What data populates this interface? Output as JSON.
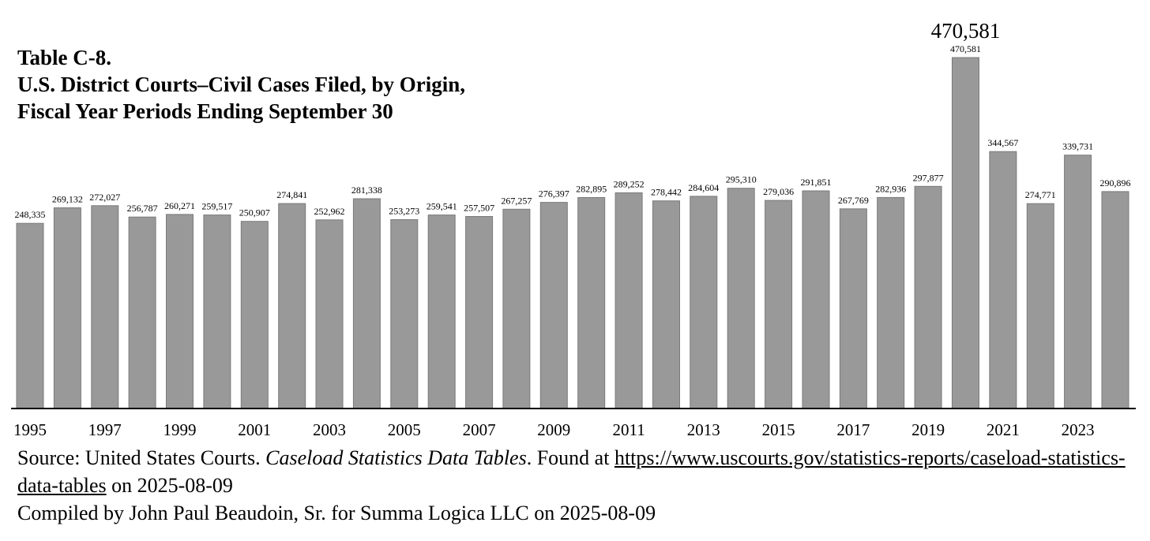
{
  "title_lines": [
    "Table C-8.",
    "U.S. District Courts–Civil Cases Filed, by Origin,",
    "Fiscal Year Periods Ending September 30"
  ],
  "chart_data": {
    "type": "bar",
    "title": "Table C-8. U.S. District Courts–Civil Cases Filed, by Origin, Fiscal Year Periods Ending September 30",
    "categories": [
      "1995",
      "1996",
      "1997",
      "1998",
      "1999",
      "2000",
      "2001",
      "2002",
      "2003",
      "2004",
      "2005",
      "2006",
      "2007",
      "2008",
      "2009",
      "2010",
      "2011",
      "2012",
      "2013",
      "2014",
      "2015",
      "2016",
      "2017",
      "2018",
      "2019",
      "2020",
      "2021",
      "2022",
      "2023",
      "2024"
    ],
    "values": [
      248335,
      269132,
      272027,
      256787,
      260271,
      259517,
      250907,
      274841,
      252962,
      281338,
      253273,
      259541,
      257507,
      267257,
      276397,
      282895,
      289252,
      278442,
      284604,
      295310,
      279036,
      291851,
      267769,
      282936,
      297877,
      470581,
      344567,
      274771,
      339731,
      290896
    ],
    "value_labels": [
      "248,335",
      "269,132",
      "272,027",
      "256,787",
      "260,271",
      "259,517",
      "250,907",
      "274,841",
      "252,962",
      "281,338",
      "253,273",
      "259,541",
      "257,507",
      "267,257",
      "276,397",
      "282,895",
      "289,252",
      "278,442",
      "284,604",
      "295,310",
      "279,036",
      "291,851",
      "267,769",
      "282,936",
      "297,877",
      "470,581",
      "344,567",
      "274,771",
      "339,731",
      "290,896"
    ],
    "x_tick_labels": [
      "1995",
      "1997",
      "1999",
      "2001",
      "2003",
      "2005",
      "2007",
      "2009",
      "2011",
      "2013",
      "2015",
      "2017",
      "2019",
      "2021",
      "2023"
    ],
    "ylim": [
      0,
      470581
    ],
    "callout": "470,581",
    "bar_color": "#999999",
    "bar_stroke": "#7a7a7a",
    "grid": false,
    "legend": "none"
  },
  "source": {
    "prefix": "Source: United States Courts. ",
    "italic": "Caseload Statistics Data Tables",
    "found_at": ". Found at ",
    "url": "https://www.uscourts.gov/statistics-reports/caseload-statistics-data-tables",
    "suffix": " on 2025-08-09"
  },
  "compiled": "Compiled by John Paul Beaudoin, Sr. for Summa Logica LLC on 2025-08-09"
}
